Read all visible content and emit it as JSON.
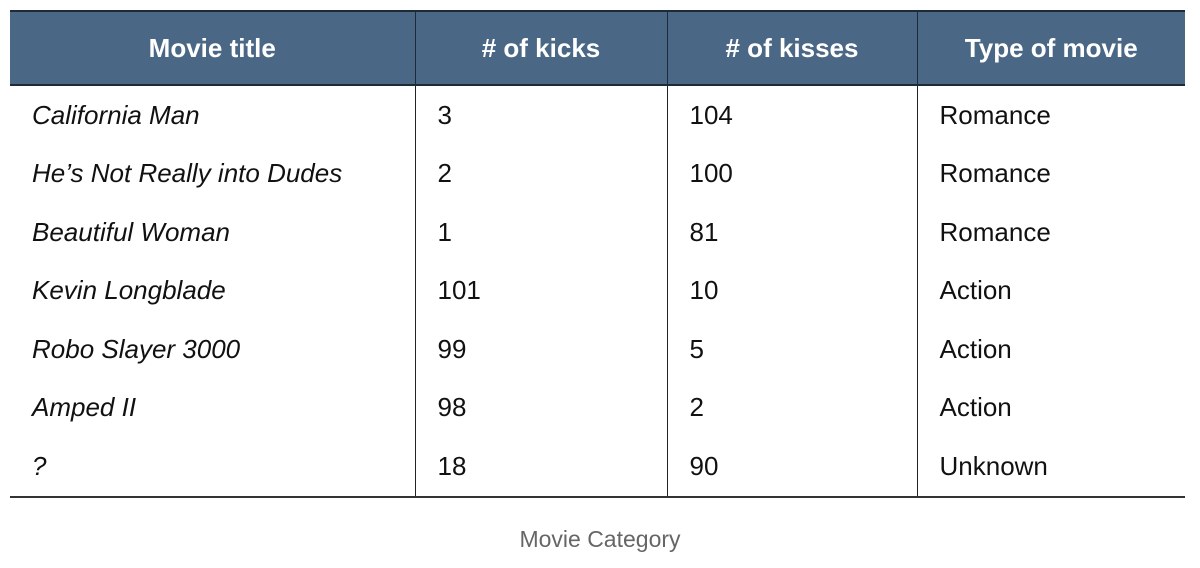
{
  "table": {
    "headers": [
      "Movie title",
      "# of kicks",
      "# of kisses",
      "Type of movie"
    ],
    "rows": [
      {
        "title": "California Man",
        "kicks": "3",
        "kisses": "104",
        "type": "Romance"
      },
      {
        "title": "He’s Not Really into Dudes",
        "kicks": "2",
        "kisses": "100",
        "type": "Romance"
      },
      {
        "title": "Beautiful Woman",
        "kicks": "1",
        "kisses": "81",
        "type": "Romance"
      },
      {
        "title": "Kevin Longblade",
        "kicks": "101",
        "kisses": "10",
        "type": "Action"
      },
      {
        "title": "Robo Slayer 3000",
        "kicks": "99",
        "kisses": "5",
        "type": "Action"
      },
      {
        "title": "Amped II",
        "kicks": "98",
        "kisses": "2",
        "type": "Action"
      },
      {
        "title": "?",
        "kicks": "18",
        "kisses": "90",
        "type": "Unknown"
      }
    ]
  },
  "caption": "Movie Category",
  "colors": {
    "header_background": "#4a6885",
    "header_text": "#ffffff",
    "caption_text": "#666666"
  }
}
